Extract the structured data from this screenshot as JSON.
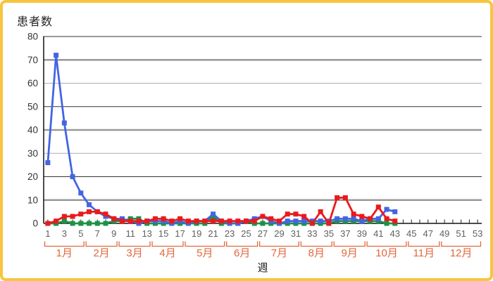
{
  "y_axis_title": "患者数",
  "x_axis_title": "週",
  "frame": {
    "border_color": "#F7C53E"
  },
  "chart_data": {
    "type": "line",
    "title": "",
    "ylabel": "患者数",
    "xlabel": "週",
    "ylim": [
      0,
      80
    ],
    "y_ticks": [
      0,
      10,
      20,
      30,
      40,
      50,
      60,
      70,
      80
    ],
    "weeks_total": 53,
    "x_tick_labels": [
      1,
      3,
      5,
      7,
      9,
      11,
      13,
      15,
      17,
      19,
      21,
      23,
      25,
      27,
      29,
      31,
      33,
      35,
      37,
      39,
      41,
      43,
      45,
      47,
      49,
      51,
      53
    ],
    "x": [
      1,
      2,
      3,
      4,
      5,
      6,
      7,
      8,
      9,
      10,
      11,
      12,
      13,
      14,
      15,
      16,
      17,
      18,
      19,
      20,
      21,
      22,
      23,
      24,
      25,
      26,
      27,
      28,
      29,
      30,
      31,
      32,
      33,
      34,
      35,
      36,
      37,
      38,
      39,
      40,
      41,
      42,
      43
    ],
    "series": [
      {
        "name": "green",
        "color": "#1B9246",
        "values": [
          0,
          0,
          1,
          0,
          0,
          0,
          0,
          0,
          1,
          1,
          2,
          2,
          0,
          0,
          0,
          0,
          0,
          0,
          0,
          0,
          3,
          0,
          0,
          0,
          1,
          0,
          0,
          0,
          0,
          0,
          0,
          0,
          0,
          0,
          0,
          1,
          1,
          1,
          1,
          1,
          1,
          0,
          0
        ]
      },
      {
        "name": "blue",
        "color": "#4365E3",
        "values": [
          26,
          72,
          43,
          20,
          13,
          8,
          5,
          3,
          2,
          2,
          1,
          0,
          1,
          1,
          1,
          0,
          1,
          0,
          1,
          1,
          4,
          1,
          0,
          0,
          1,
          2,
          3,
          1,
          0,
          1,
          1,
          1,
          1,
          1,
          1,
          2,
          2,
          2,
          1,
          2,
          2,
          6,
          5
        ]
      },
      {
        "name": "red",
        "color": "#E91A1C",
        "values": [
          0,
          1,
          3,
          3,
          4,
          5,
          5,
          4,
          2,
          1,
          1,
          1,
          1,
          2,
          2,
          1,
          2,
          1,
          1,
          1,
          1,
          1,
          1,
          1,
          1,
          1,
          3,
          2,
          1,
          4,
          4,
          3,
          0,
          5,
          0,
          11,
          11,
          4,
          3,
          2,
          7,
          2,
          1
        ]
      }
    ],
    "months": [
      {
        "label": "1月",
        "from": 1,
        "to": 5
      },
      {
        "label": "2月",
        "from": 6,
        "to": 9
      },
      {
        "label": "3月",
        "from": 10,
        "to": 13
      },
      {
        "label": "4月",
        "from": 14,
        "to": 17
      },
      {
        "label": "5月",
        "from": 18,
        "to": 22
      },
      {
        "label": "6月",
        "from": 23,
        "to": 26
      },
      {
        "label": "7月",
        "from": 27,
        "to": 31
      },
      {
        "label": "8月",
        "from": 32,
        "to": 35
      },
      {
        "label": "9月",
        "from": 36,
        "to": 39
      },
      {
        "label": "10月",
        "from": 40,
        "to": 44
      },
      {
        "label": "11月",
        "from": 45,
        "to": 48
      },
      {
        "label": "12月",
        "from": 49,
        "to": 53
      }
    ],
    "grid": {
      "black_lines": [
        20,
        50,
        80
      ],
      "thick_gray_lines": [
        10,
        40,
        70
      ],
      "thin_gray_lines": [
        30,
        60
      ],
      "black_color": "#333333",
      "thick_gray_color": "#999999",
      "thin_gray_color": "#ADADAD"
    },
    "month_color": "#E2673C",
    "week_label_color": "#606060",
    "y_label_color": "#333333",
    "legend": "none"
  }
}
